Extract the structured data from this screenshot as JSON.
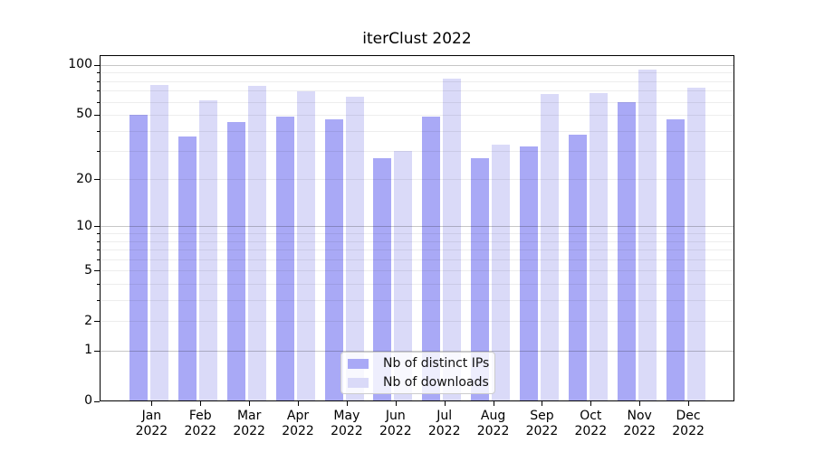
{
  "chart_data": {
    "type": "bar",
    "title": "iterClust 2022",
    "categories": [
      "Jan 2022",
      "Feb 2022",
      "Mar 2022",
      "Apr 2022",
      "May 2022",
      "Jun 2022",
      "Jul 2022",
      "Aug 2022",
      "Sep 2022",
      "Oct 2022",
      "Nov 2022",
      "Dec 2022"
    ],
    "month_labels": [
      "Jan",
      "Feb",
      "Mar",
      "Apr",
      "May",
      "Jun",
      "Jul",
      "Aug",
      "Sep",
      "Oct",
      "Nov",
      "Dec"
    ],
    "year_label": "2022",
    "series": [
      {
        "name": "Nb of distinct IPs",
        "color": "#a9a9f6",
        "values": [
          50,
          37,
          45,
          49,
          47,
          27,
          49,
          27,
          32,
          38,
          60,
          47
        ]
      },
      {
        "name": "Nb of downloads",
        "color": "#dadaf8",
        "values": [
          76,
          61,
          75,
          69,
          64,
          30,
          83,
          33,
          67,
          68,
          94,
          73
        ]
      }
    ],
    "yscale": "log1p",
    "ylim": [
      0,
      114
    ],
    "y_ticks_labeled": [
      100,
      50,
      20,
      10,
      5,
      2,
      1,
      0
    ],
    "y_gridlines_major": [
      1,
      10,
      100
    ],
    "y_gridlines_minor": [
      2,
      3,
      4,
      5,
      6,
      7,
      8,
      9,
      20,
      30,
      40,
      50,
      60,
      70,
      80,
      90
    ],
    "grid": true,
    "legend_position": "lower center"
  },
  "colors": {
    "background": "#ffffff",
    "spine": "#000000",
    "text": "#000000",
    "grid_minor": "rgba(0,0,0,0.07)",
    "grid_major": "rgba(0,0,0,0.22)",
    "legend_border": "#cccccc",
    "legend_bg": "rgba(255,255,255,0.8)"
  }
}
